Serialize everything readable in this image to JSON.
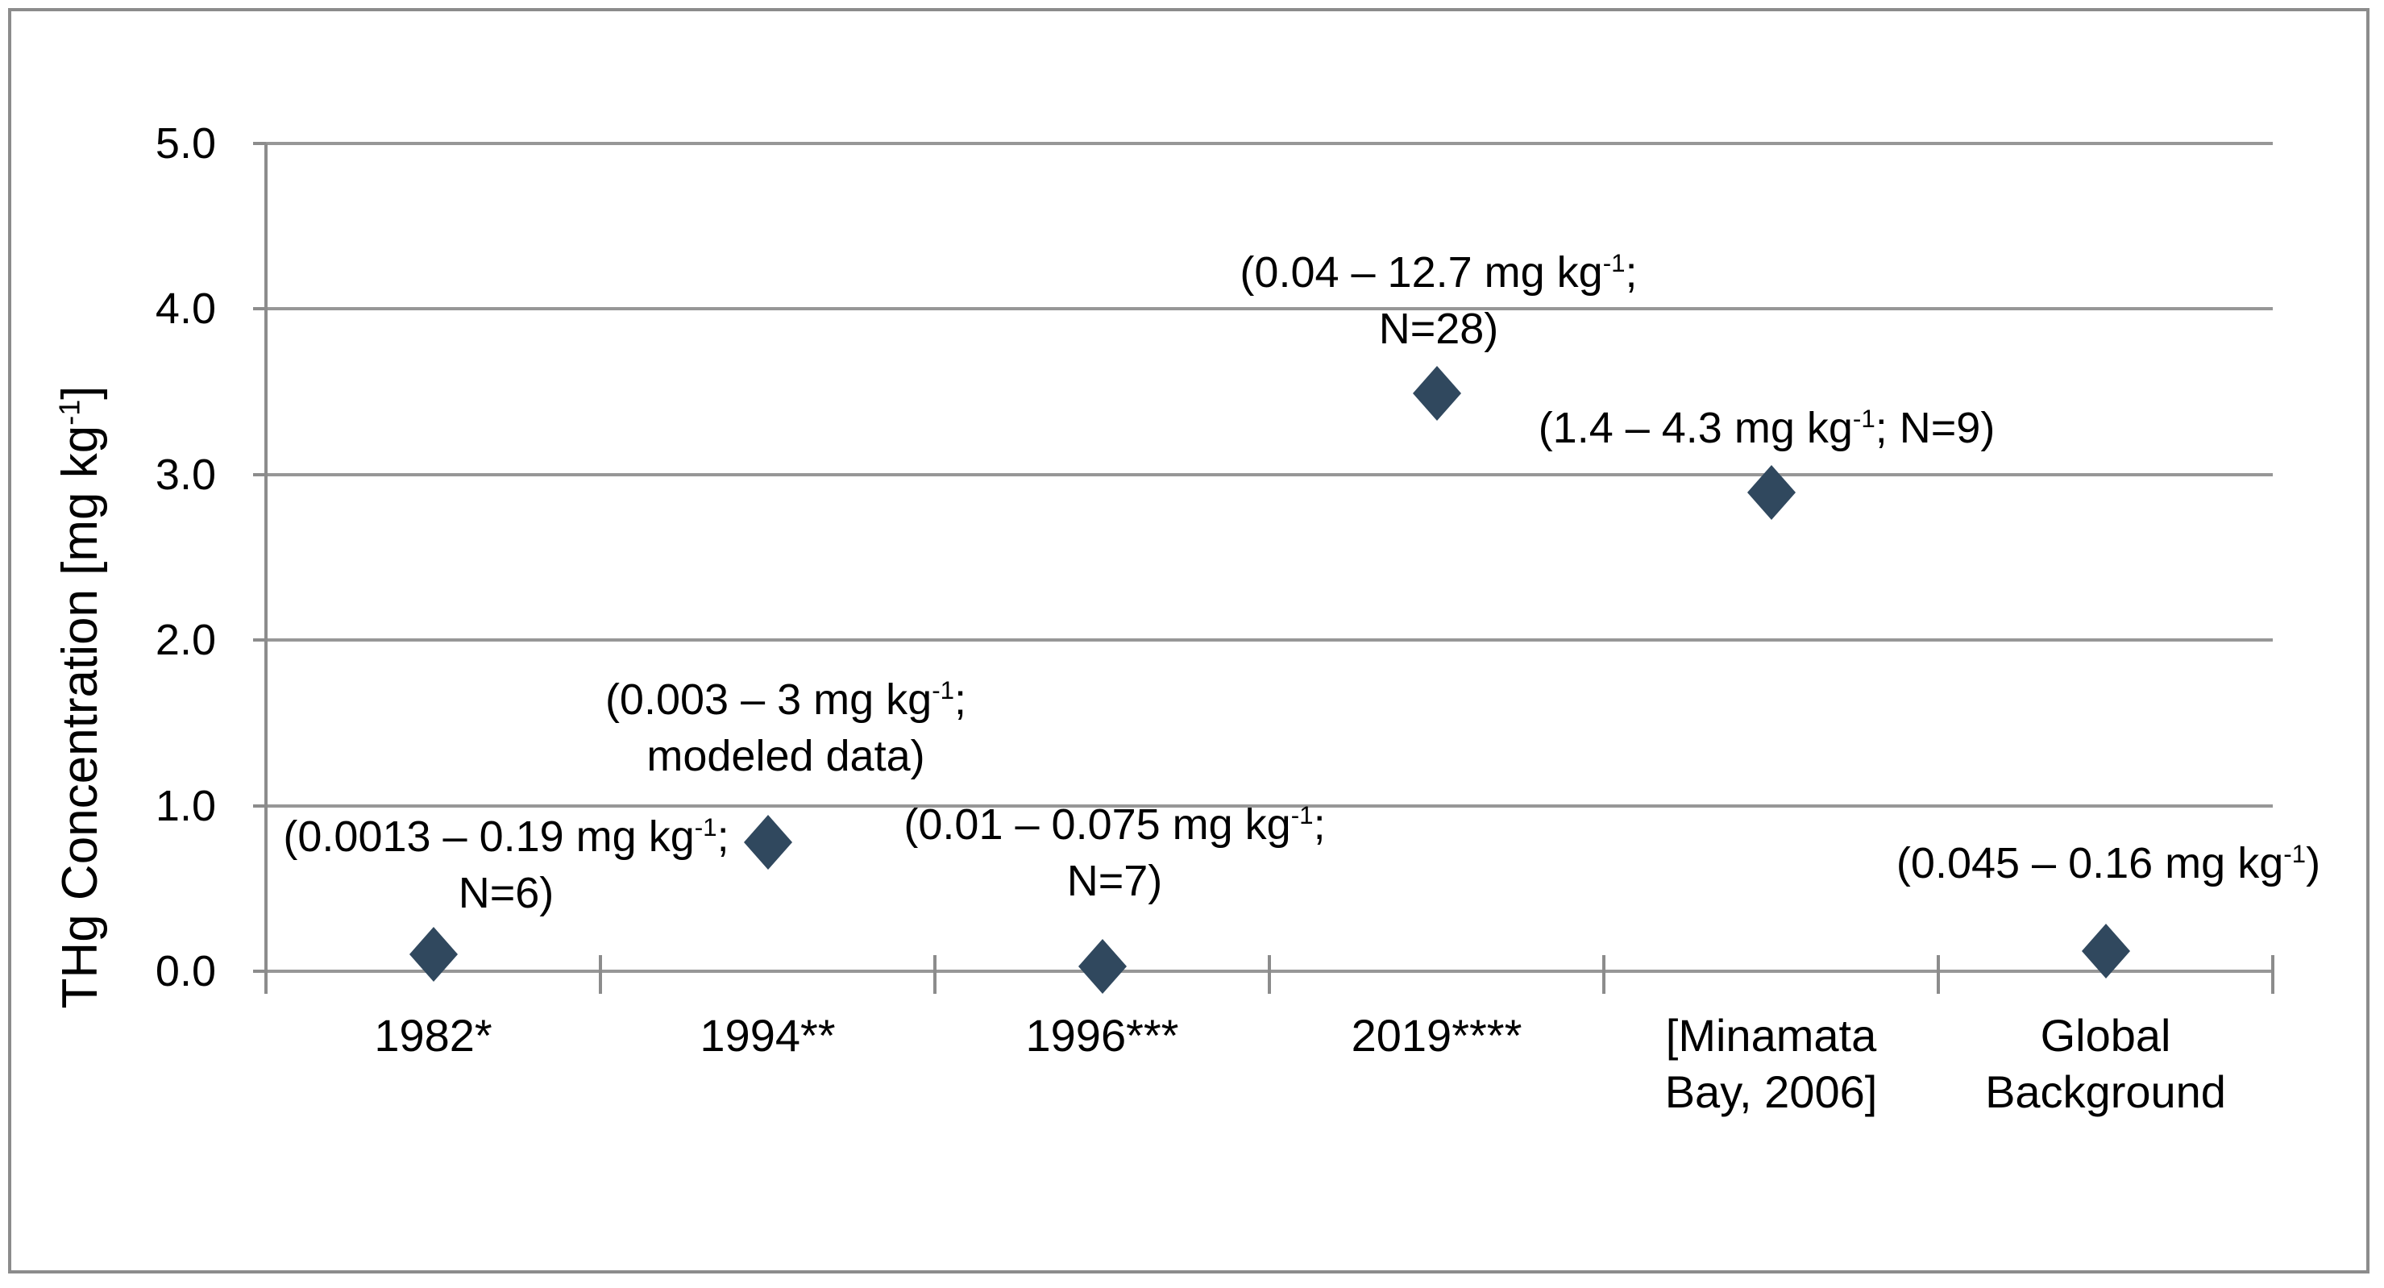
{
  "colors": {
    "marker": "#30485e",
    "gridline": "#979797",
    "axis": "#8c8c8c",
    "border": "#8c8c8c",
    "text": "#000000"
  },
  "axis": {
    "ylabel": "THg Concentration [mg kg-1]",
    "ylabel_segments": [
      {
        "t": "THg Concentration [mg kg"
      },
      {
        "t": "-1",
        "sup": true
      },
      {
        "t": "]"
      }
    ],
    "yticks": [
      {
        "label": "0.0",
        "value": 0
      },
      {
        "label": "1.0",
        "value": 1
      },
      {
        "label": "2.0",
        "value": 2
      },
      {
        "label": "3.0",
        "value": 3
      },
      {
        "label": "4.0",
        "value": 4
      },
      {
        "label": "5.0",
        "value": 5
      }
    ]
  },
  "chart_data": {
    "type": "scatter",
    "title": "",
    "xlabel": "",
    "ylabel": "THg Concentration [mg kg-1]",
    "ylim": [
      0,
      5
    ],
    "grid": true,
    "legend": false,
    "marker_shape": "diamond",
    "categories": [
      "1982*",
      "1994**",
      "1996***",
      "2019****",
      "[Minamata Bay, 2006]",
      "Global Background"
    ],
    "category_label_lines": [
      [
        "1982*"
      ],
      [
        "1994**"
      ],
      [
        "1996***"
      ],
      [
        "2019****"
      ],
      [
        "[Minamata",
        "Bay, 2006]"
      ],
      [
        "Global",
        "Background"
      ]
    ],
    "points": [
      {
        "category": "1982*",
        "value": 0.1,
        "label": "(0.0013 – 0.19 mg kg-1; N=6)"
      },
      {
        "category": "1994**",
        "value": 0.78,
        "label": "(0.003 – 3 mg kg-1; modeled data)"
      },
      {
        "category": "1996***",
        "value": 0.03,
        "label": "(0.01 – 0.075 mg kg-1; N=7)"
      },
      {
        "category": "2019****",
        "value": 3.49,
        "label": "(0.04 – 12.7 mg kg-1; N=28)"
      },
      {
        "category": "[Minamata Bay, 2006]",
        "value": 2.89,
        "label": "(1.4 – 4.3 mg kg-1; N=9)"
      },
      {
        "category": "Global Background",
        "value": 0.12,
        "label": "(0.045 – 0.16 mg kg-1)"
      }
    ],
    "annotation_lines": [
      [
        [
          {
            "t": "(0.0013 – 0.19 mg kg"
          },
          {
            "t": "-1",
            "sup": true
          },
          {
            "t": ";"
          }
        ],
        [
          {
            "t": "N=6)"
          }
        ]
      ],
      [
        [
          {
            "t": "(0.003 – 3 mg kg"
          },
          {
            "t": "-1",
            "sup": true
          },
          {
            "t": ";"
          }
        ],
        [
          {
            "t": "modeled data)"
          }
        ]
      ],
      [
        [
          {
            "t": "(0.01 – 0.075 mg kg"
          },
          {
            "t": "-1",
            "sup": true
          },
          {
            "t": ";"
          }
        ],
        [
          {
            "t": "N=7)"
          }
        ]
      ],
      [
        [
          {
            "t": "(0.04 – 12.7 mg kg"
          },
          {
            "t": "-1",
            "sup": true
          },
          {
            "t": ";"
          }
        ],
        [
          {
            "t": "N=28)"
          }
        ]
      ],
      [
        [
          {
            "t": "(1.4 – 4.3 mg kg"
          },
          {
            "t": "-1",
            "sup": true
          },
          {
            "t": "; N=9)"
          }
        ]
      ],
      [
        [
          {
            "t": "(0.045 – 0.16 mg kg"
          },
          {
            "t": "-1",
            "sup": true
          },
          {
            "t": ")"
          }
        ]
      ]
    ]
  }
}
